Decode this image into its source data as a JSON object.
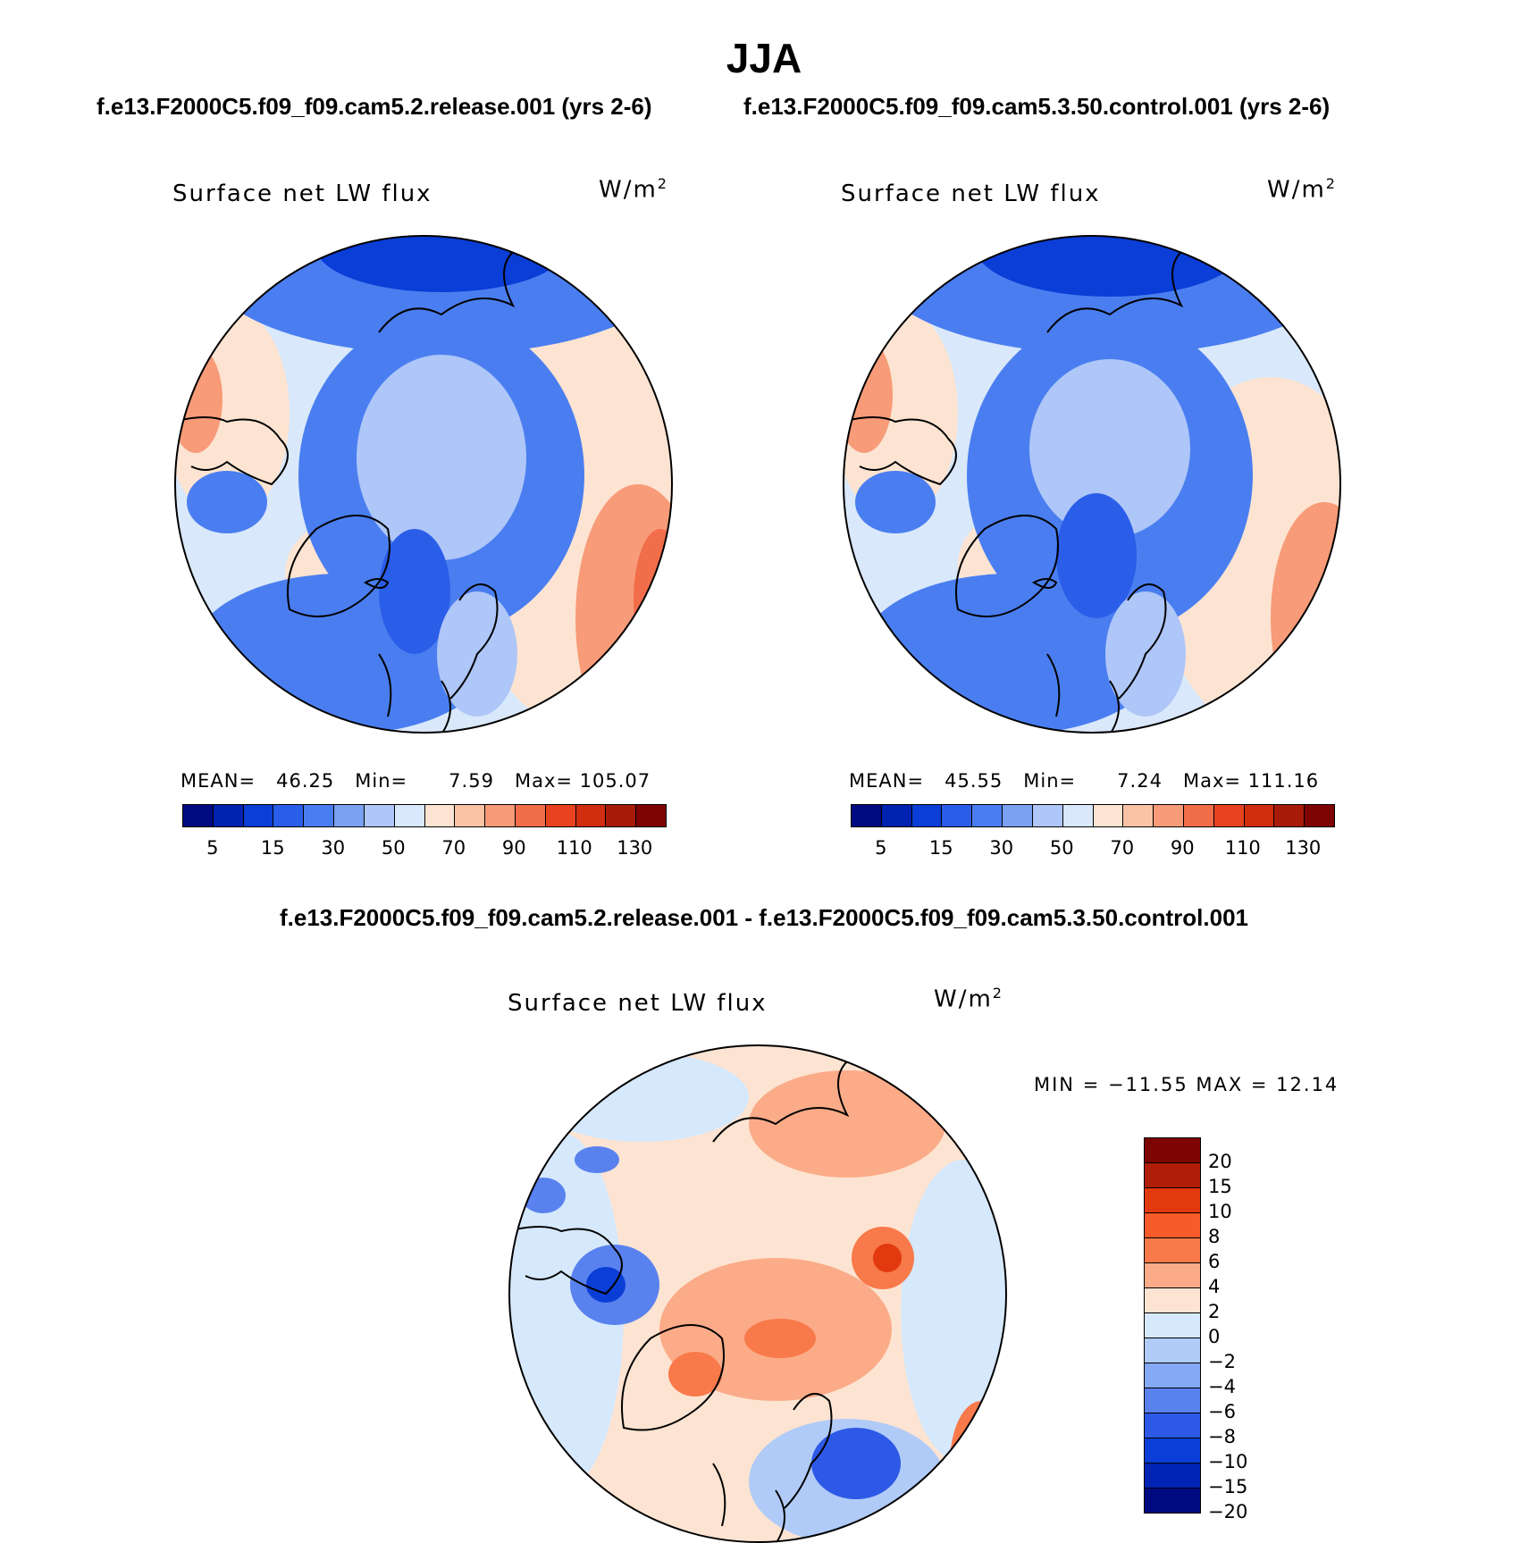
{
  "figure": {
    "title": "JJA",
    "left_case": "f.e13.F2000C5.f09_f09.cam5.2.release.001 (yrs 2-6)",
    "right_case": "f.e13.F2000C5.f09_f09.cam5.3.50.control.001 (yrs 2-6)",
    "diff_title": "f.e13.F2000C5.f09_f09.cam5.2.release.001 - f.e13.F2000C5.f09_f09.cam5.3.50.control.001"
  },
  "panels": {
    "left": {
      "variable": "Surface net LW flux",
      "units": "W/m",
      "units_exp": "2",
      "mean_label": "MEAN=",
      "mean_value": "46.25",
      "min_label": "Min=",
      "min_value": "7.59",
      "max_label": "Max=",
      "max_value": "105.07"
    },
    "right": {
      "variable": "Surface net LW flux",
      "units": "W/m",
      "units_exp": "2",
      "mean_label": "MEAN=",
      "mean_value": "45.55",
      "min_label": "Min=",
      "min_value": "7.24",
      "max_label": "Max=",
      "max_value": "111.16"
    },
    "diff": {
      "variable": "Surface net LW flux",
      "units": "W/m",
      "units_exp": "2",
      "minmax_text": "MIN = −11.55 MAX =   12.14"
    }
  },
  "colorbar_main": {
    "colors": [
      "#000a80",
      "#0022b0",
      "#0a3ed6",
      "#2a5de8",
      "#4a7ef0",
      "#7ba1f4",
      "#aec6f8",
      "#d9e8fa",
      "#fde4d2",
      "#fbc3a6",
      "#f79b78",
      "#f26d4a",
      "#e8421f",
      "#d12e10",
      "#a81b08",
      "#7e0404"
    ],
    "labels": [
      "5",
      "15",
      "30",
      "50",
      "70",
      "90",
      "110",
      "130"
    ]
  },
  "colorbar_diff": {
    "colors": [
      "#7e0404",
      "#b01d08",
      "#e3390f",
      "#f85b2a",
      "#f8794a",
      "#fbab88",
      "#fde4d2",
      "#d6e8fb",
      "#b0cbf7",
      "#85a9f4",
      "#5982ef",
      "#2d59e6",
      "#0a3ed6",
      "#0224b4",
      "#000a80"
    ],
    "labels": [
      "20",
      "15",
      "10",
      "8",
      "6",
      "4",
      "2",
      "0",
      "−2",
      "−4",
      "−6",
      "−8",
      "−10",
      "−15",
      "−20"
    ]
  },
  "map_legend": {
    "land_outline": "#000000",
    "map_border": "#000000"
  }
}
